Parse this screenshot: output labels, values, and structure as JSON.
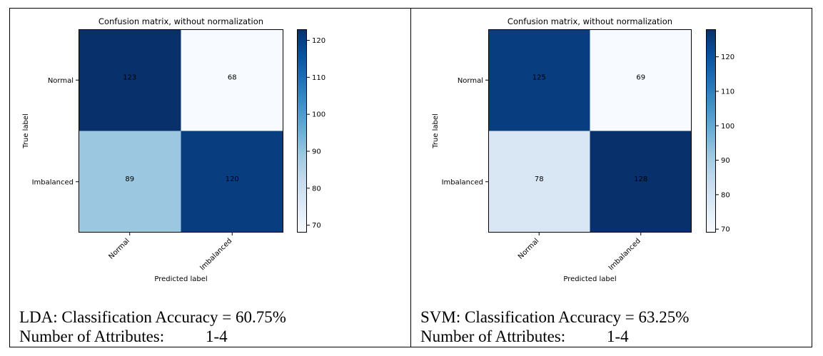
{
  "chart_data": [
    {
      "type": "heatmap",
      "title": "Confusion matrix, without normalization",
      "xlabel": "Predicted label",
      "ylabel": "True label",
      "row_labels": [
        "Normal",
        "Imbalanced"
      ],
      "col_labels": [
        "Normal",
        "Imbalanced"
      ],
      "values": [
        [
          123,
          68
        ],
        [
          89,
          120
        ]
      ],
      "colorbar": {
        "range": [
          68,
          123
        ],
        "ticks": [
          70,
          80,
          90,
          100,
          110,
          120
        ],
        "colormap": "Blues"
      }
    },
    {
      "type": "heatmap",
      "title": "Confusion matrix, without normalization",
      "xlabel": "Predicted label",
      "ylabel": "True label",
      "row_labels": [
        "Normal",
        "Imbalanced"
      ],
      "col_labels": [
        "Normal",
        "Imbalanced"
      ],
      "values": [
        [
          125,
          69
        ],
        [
          78,
          128
        ]
      ],
      "colorbar": {
        "range": [
          69,
          128
        ],
        "ticks": [
          70,
          80,
          90,
          100,
          110,
          120
        ],
        "colormap": "Blues"
      }
    }
  ],
  "captions": [
    {
      "accuracy": "LDA: Classification Accuracy = 60.75%",
      "attributes_label": "Number of Attributes:",
      "attributes_value": "1-4"
    },
    {
      "accuracy": "SVM: Classification Accuracy = 63.25%",
      "attributes_label": "Number of Attributes:",
      "attributes_value": "1-4"
    }
  ]
}
